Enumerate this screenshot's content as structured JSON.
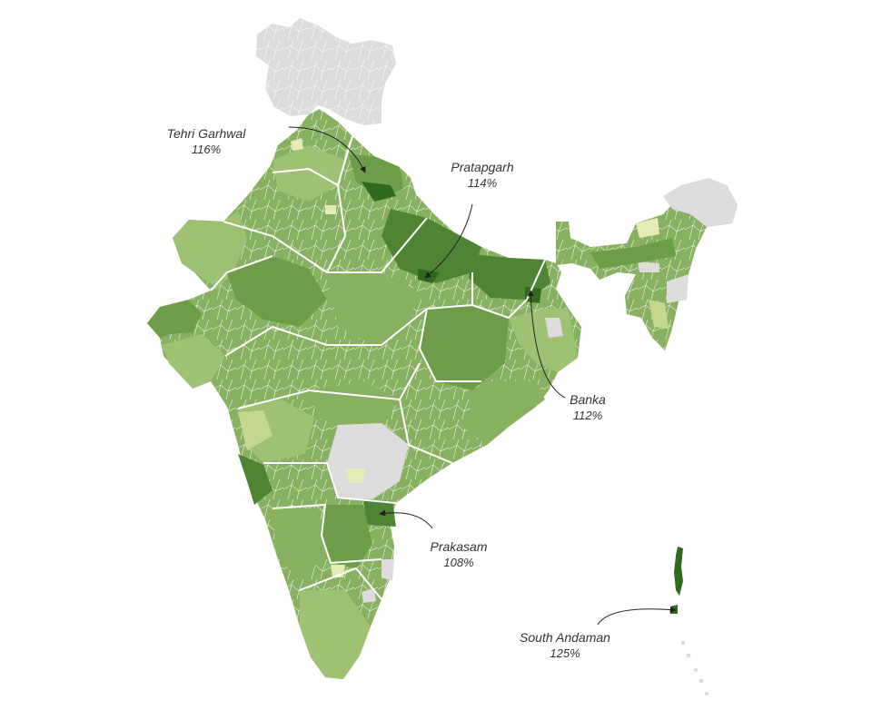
{
  "legend_colors": {
    "no_data": "#dcdcdc",
    "very_low": "#e4ebb4",
    "low": "#c3d78f",
    "mid_low": "#9fc173",
    "mid": "#87b060",
    "mid_high": "#6e9c49",
    "high": "#4f8435",
    "very_high": "#2f6a1f",
    "boundary": "#ffffff"
  },
  "annotations": [
    {
      "name": "Tehri Garhwal",
      "value": "116%"
    },
    {
      "name": "Pratapgarh",
      "value": "114%"
    },
    {
      "name": "Banka",
      "value": "112%"
    },
    {
      "name": "Prakasam",
      "value": "108%"
    },
    {
      "name": "South Andaman",
      "value": "125%"
    }
  ]
}
